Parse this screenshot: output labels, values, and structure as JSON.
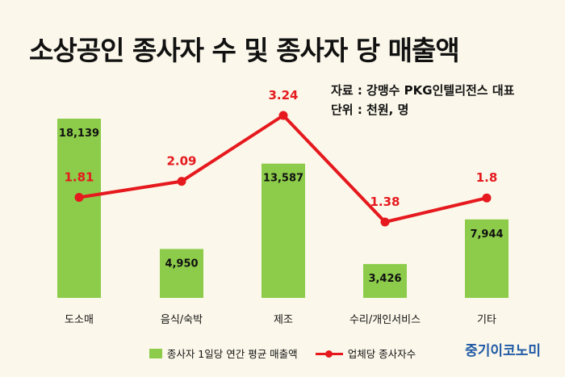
{
  "title": "소상공인 종사자 수 및 종사자 당 매출액",
  "source_lines": [
    "자료 : 강맹수 PKG인텔리전스 대표",
    "단위 : 천원, 명"
  ],
  "brand": "중기이코노미",
  "colors": {
    "bar": "#8ccc4a",
    "line": "#e5191e",
    "background": "#fbf7ea"
  },
  "chart_data": {
    "type": "bar",
    "categories": [
      "도소매",
      "음식/숙박",
      "제조",
      "수리/개인서비스",
      "기타"
    ],
    "series": [
      {
        "name": "종사자 1일당 연간 평균 매출액",
        "type": "bar",
        "values": [
          18139,
          4950,
          13587,
          3426,
          7944
        ],
        "labels": [
          "18,139",
          "4,950",
          "13,587",
          "3,426",
          "7,944"
        ]
      },
      {
        "name": "업체당 종사자수",
        "type": "line",
        "values": [
          1.81,
          2.09,
          3.24,
          1.38,
          1.8
        ],
        "labels": [
          "1.81",
          "2.09",
          "3.24",
          "1.38",
          "1.8"
        ]
      }
    ],
    "legend_position": "bottom",
    "grid": false
  }
}
